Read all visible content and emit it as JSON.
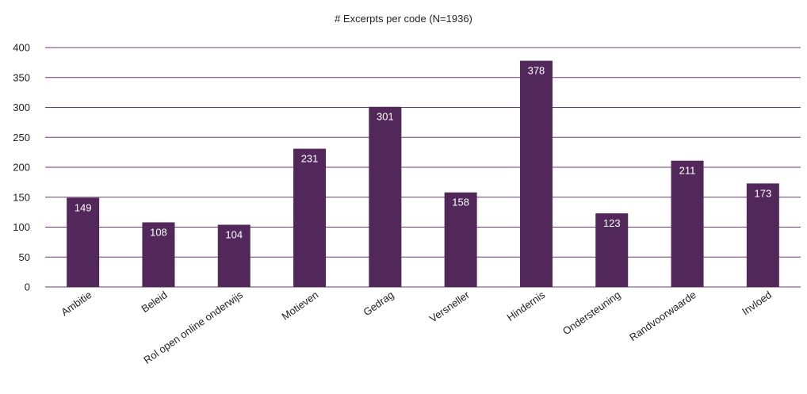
{
  "chart_data": {
    "type": "bar",
    "title": "# Excerpts per code (N=1936)",
    "xlabel": "",
    "ylabel": "",
    "ylim": [
      0,
      400
    ],
    "yticks": [
      0,
      50,
      100,
      150,
      200,
      250,
      300,
      350,
      400
    ],
    "grid": true,
    "legend": "none",
    "bar_color": "#52285a",
    "grid_color": "#6b3a6f",
    "categories": [
      "Ambitie",
      "Beleid",
      "Rol open online onderwijs",
      "Motieven",
      "Gedrag",
      "Versneller",
      "Hindernis",
      "Ondersteuning",
      "Randvoorwaarde",
      "Invloed"
    ],
    "values": [
      149,
      108,
      104,
      231,
      301,
      158,
      378,
      123,
      211,
      173
    ]
  }
}
